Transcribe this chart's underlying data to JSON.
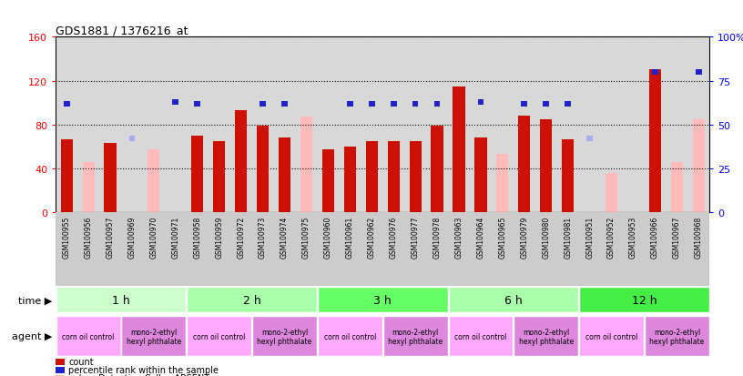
{
  "title": "GDS1881 / 1376216_at",
  "samples": [
    "GSM100955",
    "GSM100956",
    "GSM100957",
    "GSM100969",
    "GSM100970",
    "GSM100971",
    "GSM100958",
    "GSM100959",
    "GSM100972",
    "GSM100973",
    "GSM100974",
    "GSM100975",
    "GSM100960",
    "GSM100961",
    "GSM100962",
    "GSM100976",
    "GSM100977",
    "GSM100978",
    "GSM100963",
    "GSM100964",
    "GSM100965",
    "GSM100979",
    "GSM100980",
    "GSM100981",
    "GSM100951",
    "GSM100952",
    "GSM100953",
    "GSM100966",
    "GSM100967",
    "GSM100968"
  ],
  "count": [
    66,
    0,
    63,
    0,
    0,
    0,
    70,
    65,
    93,
    79,
    68,
    0,
    57,
    60,
    65,
    65,
    65,
    79,
    115,
    68,
    0,
    88,
    85,
    66,
    0,
    0,
    0,
    130,
    0,
    0
  ],
  "count_absent": [
    0,
    46,
    0,
    0,
    57,
    0,
    0,
    0,
    0,
    0,
    0,
    87,
    0,
    0,
    0,
    0,
    0,
    0,
    0,
    0,
    53,
    0,
    0,
    0,
    0,
    36,
    0,
    0,
    46,
    85
  ],
  "rank": [
    62,
    0,
    0,
    0,
    0,
    63,
    62,
    0,
    0,
    62,
    62,
    0,
    0,
    62,
    62,
    62,
    62,
    62,
    0,
    63,
    0,
    62,
    62,
    62,
    0,
    0,
    0,
    80,
    0,
    80
  ],
  "rank_absent": [
    0,
    0,
    0,
    42,
    0,
    0,
    0,
    0,
    0,
    0,
    0,
    0,
    0,
    0,
    0,
    0,
    0,
    0,
    0,
    0,
    0,
    0,
    0,
    0,
    42,
    0,
    0,
    0,
    0,
    0
  ],
  "time_groups": [
    {
      "label": "1 h",
      "start": 0,
      "end": 6,
      "color": "#ccffcc"
    },
    {
      "label": "2 h",
      "start": 6,
      "end": 12,
      "color": "#aaffaa"
    },
    {
      "label": "3 h",
      "start": 12,
      "end": 18,
      "color": "#66ff66"
    },
    {
      "label": "6 h",
      "start": 18,
      "end": 24,
      "color": "#aaffaa"
    },
    {
      "label": "12 h",
      "start": 24,
      "end": 30,
      "color": "#44ee44"
    }
  ],
  "agent_groups": [
    {
      "label": "corn oil control",
      "start": 0,
      "end": 3,
      "color": "#ffaaff"
    },
    {
      "label": "mono-2-ethyl\nhexyl phthalate",
      "start": 3,
      "end": 6,
      "color": "#dd88dd"
    },
    {
      "label": "corn oil control",
      "start": 6,
      "end": 9,
      "color": "#ffaaff"
    },
    {
      "label": "mono-2-ethyl\nhexyl phthalate",
      "start": 9,
      "end": 12,
      "color": "#dd88dd"
    },
    {
      "label": "corn oil control",
      "start": 12,
      "end": 15,
      "color": "#ffaaff"
    },
    {
      "label": "mono-2-ethyl\nhexyl phthalate",
      "start": 15,
      "end": 18,
      "color": "#dd88dd"
    },
    {
      "label": "corn oil control",
      "start": 18,
      "end": 21,
      "color": "#ffaaff"
    },
    {
      "label": "mono-2-ethyl\nhexyl phthalate",
      "start": 21,
      "end": 24,
      "color": "#dd88dd"
    },
    {
      "label": "corn oil control",
      "start": 24,
      "end": 27,
      "color": "#ffaaff"
    },
    {
      "label": "mono-2-ethyl\nhexyl phthalate",
      "start": 27,
      "end": 30,
      "color": "#dd88dd"
    }
  ],
  "bar_color_red": "#cc1100",
  "bar_color_pink": "#ffbbbb",
  "rank_color_blue": "#2222cc",
  "rank_color_lightblue": "#aaaaee",
  "left_ylim": [
    0,
    160
  ],
  "right_ylim": [
    0,
    100
  ],
  "left_yticks": [
    0,
    40,
    80,
    120,
    160
  ],
  "right_yticks": [
    0,
    25,
    50,
    75,
    100
  ],
  "right_yticklabels": [
    "0",
    "25",
    "50",
    "75",
    "100%"
  ],
  "plot_bg": "#d8d8d8",
  "bar_width": 0.55
}
